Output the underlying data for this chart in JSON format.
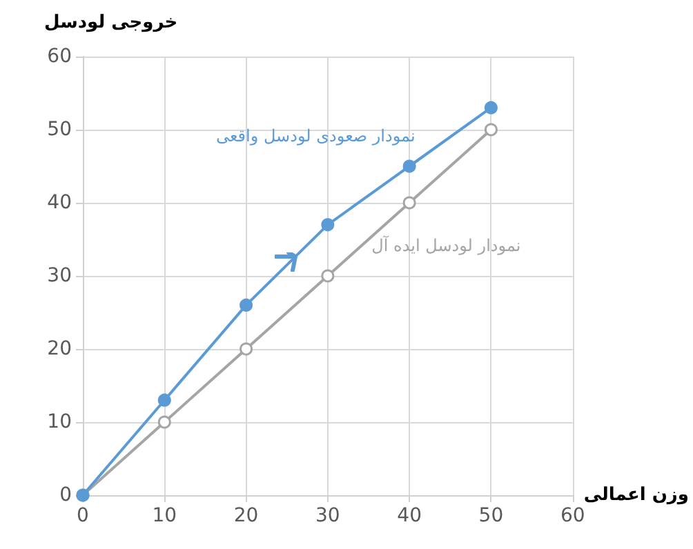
{
  "chart_data": {
    "type": "line",
    "xlabel": "وزن اعمالی",
    "ylabel": "خروجی لودسل",
    "x": [
      0,
      10,
      20,
      30,
      40,
      50
    ],
    "series": [
      {
        "name": "نمودار صعودی لودسل واقعی",
        "color": "#5b9bd5",
        "values": [
          0,
          13,
          26,
          37,
          45,
          53
        ]
      },
      {
        "name": "نمودار لودسل ایده آل",
        "color": "#a5a5a5",
        "values": [
          0,
          10,
          20,
          30,
          40,
          50
        ]
      }
    ],
    "xlim": [
      0,
      60
    ],
    "ylim": [
      0,
      60
    ],
    "xticks": [
      0,
      10,
      20,
      30,
      40,
      50,
      60
    ],
    "yticks": [
      0,
      10,
      20,
      30,
      40,
      50,
      60
    ],
    "grid": true,
    "legend": false,
    "marker": "circle",
    "line_style": "solid"
  }
}
